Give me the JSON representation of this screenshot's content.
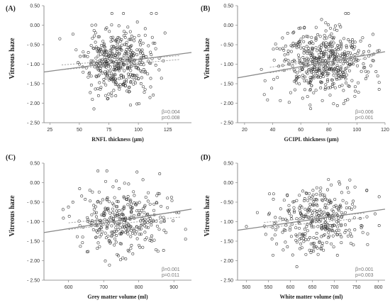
{
  "chart_data": [
    {
      "type": "scatter",
      "panel_label": "(A)",
      "xlabel": "RNFL thickness (µm)",
      "ylabel": "Vitreous haze",
      "xlim": [
        20,
        145
      ],
      "ylim": [
        -2.5,
        0.5
      ],
      "xticks": [
        25,
        50,
        75,
        100,
        125
      ],
      "yticks": [
        -2.5,
        -2.0,
        -1.5,
        -1.0,
        -0.5,
        0.0,
        0.5
      ],
      "ytick_labels": [
        "- 2.50",
        "- 2.00",
        "- 1.50",
        "- 1.00",
        "- 0.50",
        "0.00",
        "0.50"
      ],
      "beta": "β=0.004",
      "p": "p=0.008",
      "fit": {
        "x": [
          20,
          145
        ],
        "y": [
          -1.2,
          -0.7
        ]
      },
      "ci_upper": {
        "x": [
          35,
          135
        ],
        "y": [
          -1.02,
          -0.78
        ]
      },
      "ci_lower": {
        "x": [
          35,
          135
        ],
        "y": [
          -1.14,
          -0.88
        ]
      },
      "n_points": 420,
      "x_center": 82,
      "x_spread": 14,
      "y_center": -0.95,
      "y_spread": 0.42,
      "seed": 11
    },
    {
      "type": "scatter",
      "panel_label": "(B)",
      "xlabel": "GCIPL thickness (µm)",
      "ylabel": "Vitreous haze",
      "xlim": [
        15,
        120
      ],
      "ylim": [
        -2.5,
        0.5
      ],
      "xticks": [
        20,
        40,
        60,
        80,
        100,
        120
      ],
      "yticks": [
        -2.5,
        -2.0,
        -1.5,
        -1.0,
        -0.5,
        0.0,
        0.5
      ],
      "ytick_labels": [
        "- 2.50",
        "- 2.00",
        "- 1.50",
        "- 1.00",
        "- 0.50",
        "0.00",
        "0.50"
      ],
      "beta": "β=0.006",
      "p": "p<0.001",
      "fit": {
        "x": [
          15,
          120
        ],
        "y": [
          -1.35,
          -0.68
        ]
      },
      "ci_upper": {
        "x": [
          38,
          105
        ],
        "y": [
          -1.08,
          -0.76
        ]
      },
      "ci_lower": {
        "x": [
          38,
          105
        ],
        "y": [
          -1.22,
          -0.86
        ]
      },
      "n_points": 480,
      "x_center": 75,
      "x_spread": 15,
      "y_center": -0.95,
      "y_spread": 0.43,
      "seed": 23
    },
    {
      "type": "scatter",
      "panel_label": "(C)",
      "xlabel": "Grey matter volume (ml)",
      "ylabel": "Vitreous haze",
      "xlim": [
        530,
        950
      ],
      "ylim": [
        -2.5,
        0.5
      ],
      "xticks": [
        600,
        700,
        800,
        900
      ],
      "yticks": [
        -2.5,
        -2.0,
        -1.5,
        -1.0,
        -0.5,
        0.0,
        0.5
      ],
      "ytick_labels": [
        "- 2.50",
        "- 2.00",
        "- 1.50",
        "- 1.00",
        "- 0.50",
        "0.00",
        "0.50"
      ],
      "beta": "β=0.001",
      "p": "p=0.011",
      "fit": {
        "x": [
          530,
          950
        ],
        "y": [
          -1.28,
          -0.68
        ]
      },
      "ci_upper": {
        "x": [
          600,
          920
        ],
        "y": [
          -1.03,
          -0.75
        ]
      },
      "ci_lower": {
        "x": [
          600,
          920
        ],
        "y": [
          -1.2,
          -0.88
        ]
      },
      "n_points": 330,
      "x_center": 760,
      "x_spread": 65,
      "y_center": -0.95,
      "y_spread": 0.42,
      "seed": 37
    },
    {
      "type": "scatter",
      "panel_label": "(D)",
      "xlabel": "White matter volume (ml)",
      "ylabel": "Vitreous haze",
      "xlim": [
        480,
        815
      ],
      "ylim": [
        -2.5,
        0.5
      ],
      "xticks": [
        500,
        550,
        600,
        650,
        700,
        750,
        800
      ],
      "yticks": [
        -2.5,
        -2.0,
        -1.5,
        -1.0,
        -0.5,
        0.0,
        0.5
      ],
      "ytick_labels": [
        "- 2.50",
        "- 2.00",
        "- 1.50",
        "- 1.00",
        "- 0.50",
        "0.00",
        "0.50"
      ],
      "beta": "β=0.001",
      "p": "p=0.003",
      "fit": {
        "x": [
          480,
          815
        ],
        "y": [
          -1.22,
          -0.68
        ]
      },
      "ci_upper": {
        "x": [
          540,
          770
        ],
        "y": [
          -1.02,
          -0.78
        ]
      },
      "ci_lower": {
        "x": [
          540,
          770
        ],
        "y": [
          -1.16,
          -0.9
        ]
      },
      "n_points": 330,
      "x_center": 660,
      "x_spread": 50,
      "y_center": -0.95,
      "y_spread": 0.42,
      "seed": 53
    }
  ]
}
